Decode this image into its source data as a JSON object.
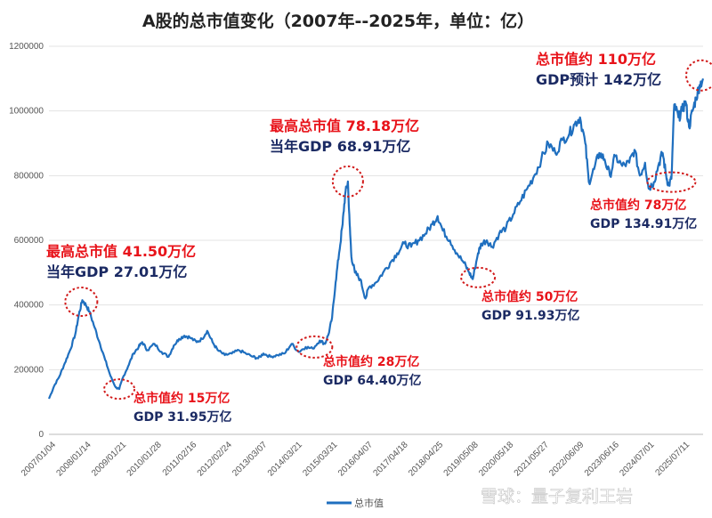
{
  "chart_data": {
    "type": "line",
    "title": "A股的总市值变化（2007年--2025年，单位：亿）",
    "xlabel": "",
    "ylabel": "",
    "ylim": [
      0,
      1200000
    ],
    "y_ticks": [
      "0",
      "200000",
      "400000",
      "600000",
      "800000",
      "1000000",
      "1200000"
    ],
    "x_ticks": [
      "2007/01/04",
      "2008/01/14",
      "2009/01/21",
      "2010/01/28",
      "2011/02/16",
      "2012/02/24",
      "2013/03/07",
      "2014/03/21",
      "2015/03/31",
      "2016/04/07",
      "2017/04/18",
      "2018/04/25",
      "2019/05/08",
      "2020/05/18",
      "2021/05/27",
      "2022/06/09",
      "2023/06/16",
      "2024/07/01",
      "2025/07/11"
    ],
    "grid": true,
    "legend_position": "bottom",
    "series": [
      {
        "name": "总市值",
        "color": "#1f6fbf",
        "x": [
          2007.0,
          2007.15,
          2007.3,
          2007.45,
          2007.6,
          2007.75,
          2007.85,
          2007.95,
          2008.05,
          2008.15,
          2008.3,
          2008.45,
          2008.6,
          2008.75,
          2008.9,
          2009.0,
          2009.1,
          2009.25,
          2009.4,
          2009.55,
          2009.65,
          2009.8,
          2010.0,
          2010.2,
          2010.4,
          2010.55,
          2010.7,
          2010.85,
          2011.0,
          2011.2,
          2011.35,
          2011.5,
          2011.65,
          2011.8,
          2012.0,
          2012.2,
          2012.4,
          2012.6,
          2012.8,
          2012.95,
          2013.1,
          2013.3,
          2013.5,
          2013.7,
          2013.9,
          2014.1,
          2014.3,
          2014.5,
          2014.7,
          2014.85,
          2014.95,
          2015.05,
          2015.15,
          2015.25,
          2015.35,
          2015.42,
          2015.5,
          2015.55,
          2015.6,
          2015.7,
          2015.85,
          2016.0,
          2016.1,
          2016.3,
          2016.5,
          2016.7,
          2016.9,
          2017.1,
          2017.3,
          2017.5,
          2017.7,
          2017.9,
          2018.05,
          2018.2,
          2018.4,
          2018.6,
          2018.8,
          2018.95,
          2019.05,
          2019.2,
          2019.3,
          2019.45,
          2019.6,
          2019.8,
          2020.0,
          2020.2,
          2020.4,
          2020.6,
          2020.8,
          2021.0,
          2021.2,
          2021.4,
          2021.6,
          2021.8,
          2021.95,
          2022.1,
          2022.25,
          2022.35,
          2022.5,
          2022.65,
          2022.8,
          2022.95,
          2023.1,
          2023.3,
          2023.5,
          2023.65,
          2023.8,
          2023.95,
          2024.05,
          2024.2,
          2024.35,
          2024.45,
          2024.55,
          2024.62,
          2024.7,
          2024.78,
          2024.9,
          2025.0,
          2025.1,
          2025.2,
          2025.3,
          2025.4,
          2025.5,
          2025.6
        ],
        "values": [
          110000,
          150000,
          180000,
          220000,
          260000,
          310000,
          370000,
          415000,
          400000,
          380000,
          330000,
          280000,
          230000,
          180000,
          145000,
          140000,
          175000,
          210000,
          250000,
          270000,
          285000,
          260000,
          280000,
          255000,
          240000,
          275000,
          295000,
          305000,
          300000,
          285000,
          295000,
          320000,
          285000,
          260000,
          245000,
          250000,
          260000,
          250000,
          240000,
          235000,
          250000,
          240000,
          245000,
          250000,
          280000,
          255000,
          270000,
          265000,
          290000,
          280000,
          310000,
          360000,
          470000,
          560000,
          650000,
          740000,
          782000,
          650000,
          550000,
          500000,
          480000,
          420000,
          455000,
          470000,
          500000,
          530000,
          560000,
          590000,
          580000,
          600000,
          620000,
          650000,
          675000,
          630000,
          600000,
          560000,
          530000,
          500000,
          480000,
          560000,
          590000,
          600000,
          580000,
          620000,
          640000,
          680000,
          720000,
          760000,
          800000,
          850000,
          900000,
          870000,
          910000,
          930000,
          960000,
          980000,
          900000,
          780000,
          820000,
          870000,
          850000,
          800000,
          860000,
          830000,
          840000,
          880000,
          800000,
          840000,
          760000,
          780000,
          840000,
          870000,
          800000,
          770000,
          790000,
          1020000,
          980000,
          1000000,
          1030000,
          950000,
          1000000,
          1040000,
          1080000,
          1100000
        ]
      }
    ],
    "annotations": [
      {
        "red": "最高总市值 41.50万亿",
        "navy": "当年GDP 27.01万亿"
      },
      {
        "red": "总市值约 15万亿",
        "navy": "GDP 31.95万亿"
      },
      {
        "red": "总市值约 28万亿",
        "navy": "GDP 64.40万亿"
      },
      {
        "red": "最高总市值 78.18万亿",
        "navy": "当年GDP 68.91万亿"
      },
      {
        "red": "总市值约 50万亿",
        "navy": "GDP 91.93万亿"
      },
      {
        "red": "总市值约 78万亿",
        "navy": "GDP 134.91万亿"
      },
      {
        "red": "总市值约 110万亿",
        "navy": "GDP预计 142万亿"
      }
    ],
    "watermark": "雪球：量子复利王岩"
  }
}
